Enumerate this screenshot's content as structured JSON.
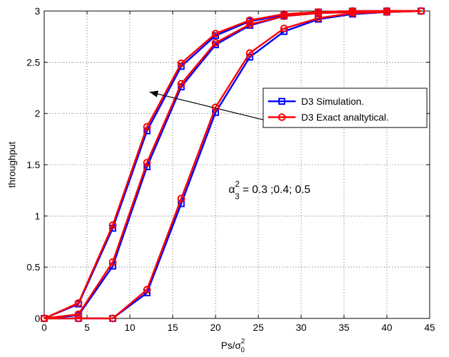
{
  "chart_data": {
    "type": "line",
    "xlabel": "Ps/σ",
    "xlabel_sub": "0",
    "xlabel_sup": "2",
    "ylabel": "throughput",
    "xlim": [
      0,
      45
    ],
    "ylim": [
      0,
      3
    ],
    "xticks": [
      0,
      5,
      10,
      15,
      20,
      25,
      30,
      35,
      40,
      45
    ],
    "yticks": [
      0,
      0.5,
      1,
      1.5,
      2,
      2.5,
      3
    ],
    "grid": true,
    "legend_position": "top-right",
    "x": [
      0,
      4,
      8,
      12,
      16,
      20,
      24,
      28,
      32,
      36,
      40,
      44
    ],
    "series": [
      {
        "name": "D3 Simulation.",
        "color": "#0000ff",
        "marker": "square",
        "curves": [
          [
            0,
            0.14,
            0.88,
            1.83,
            2.46,
            2.76,
            2.9,
            2.96,
            2.99,
            3.0,
            3.0,
            3.0
          ],
          [
            0,
            0.03,
            0.51,
            1.48,
            2.26,
            2.67,
            2.86,
            2.95,
            2.98,
            2.99,
            3.0,
            3.0
          ],
          [
            0,
            0,
            0,
            0.25,
            1.12,
            2.01,
            2.55,
            2.8,
            2.92,
            2.97,
            2.99,
            3.0
          ]
        ]
      },
      {
        "name": "D3 Exact analtytical.",
        "color": "#ff0000",
        "marker": "circle",
        "curves": [
          [
            0,
            0.15,
            0.91,
            1.87,
            2.49,
            2.78,
            2.91,
            2.97,
            2.99,
            3.0,
            3.0,
            3.0
          ],
          [
            0,
            0.04,
            0.55,
            1.52,
            2.29,
            2.69,
            2.87,
            2.95,
            2.98,
            2.99,
            3.0,
            3.0
          ],
          [
            0,
            0,
            0,
            0.28,
            1.17,
            2.06,
            2.59,
            2.83,
            2.93,
            2.98,
            2.99,
            3.0
          ]
        ]
      }
    ],
    "annotation": {
      "text_prefix": "α",
      "text_sup": "2",
      "text_sub": "3",
      "text_rest": " = 0.3 ;0.4; 0.5",
      "arrow_from": [
        26.5,
        1.92
      ],
      "arrow_to": [
        12.3,
        2.21
      ]
    }
  }
}
